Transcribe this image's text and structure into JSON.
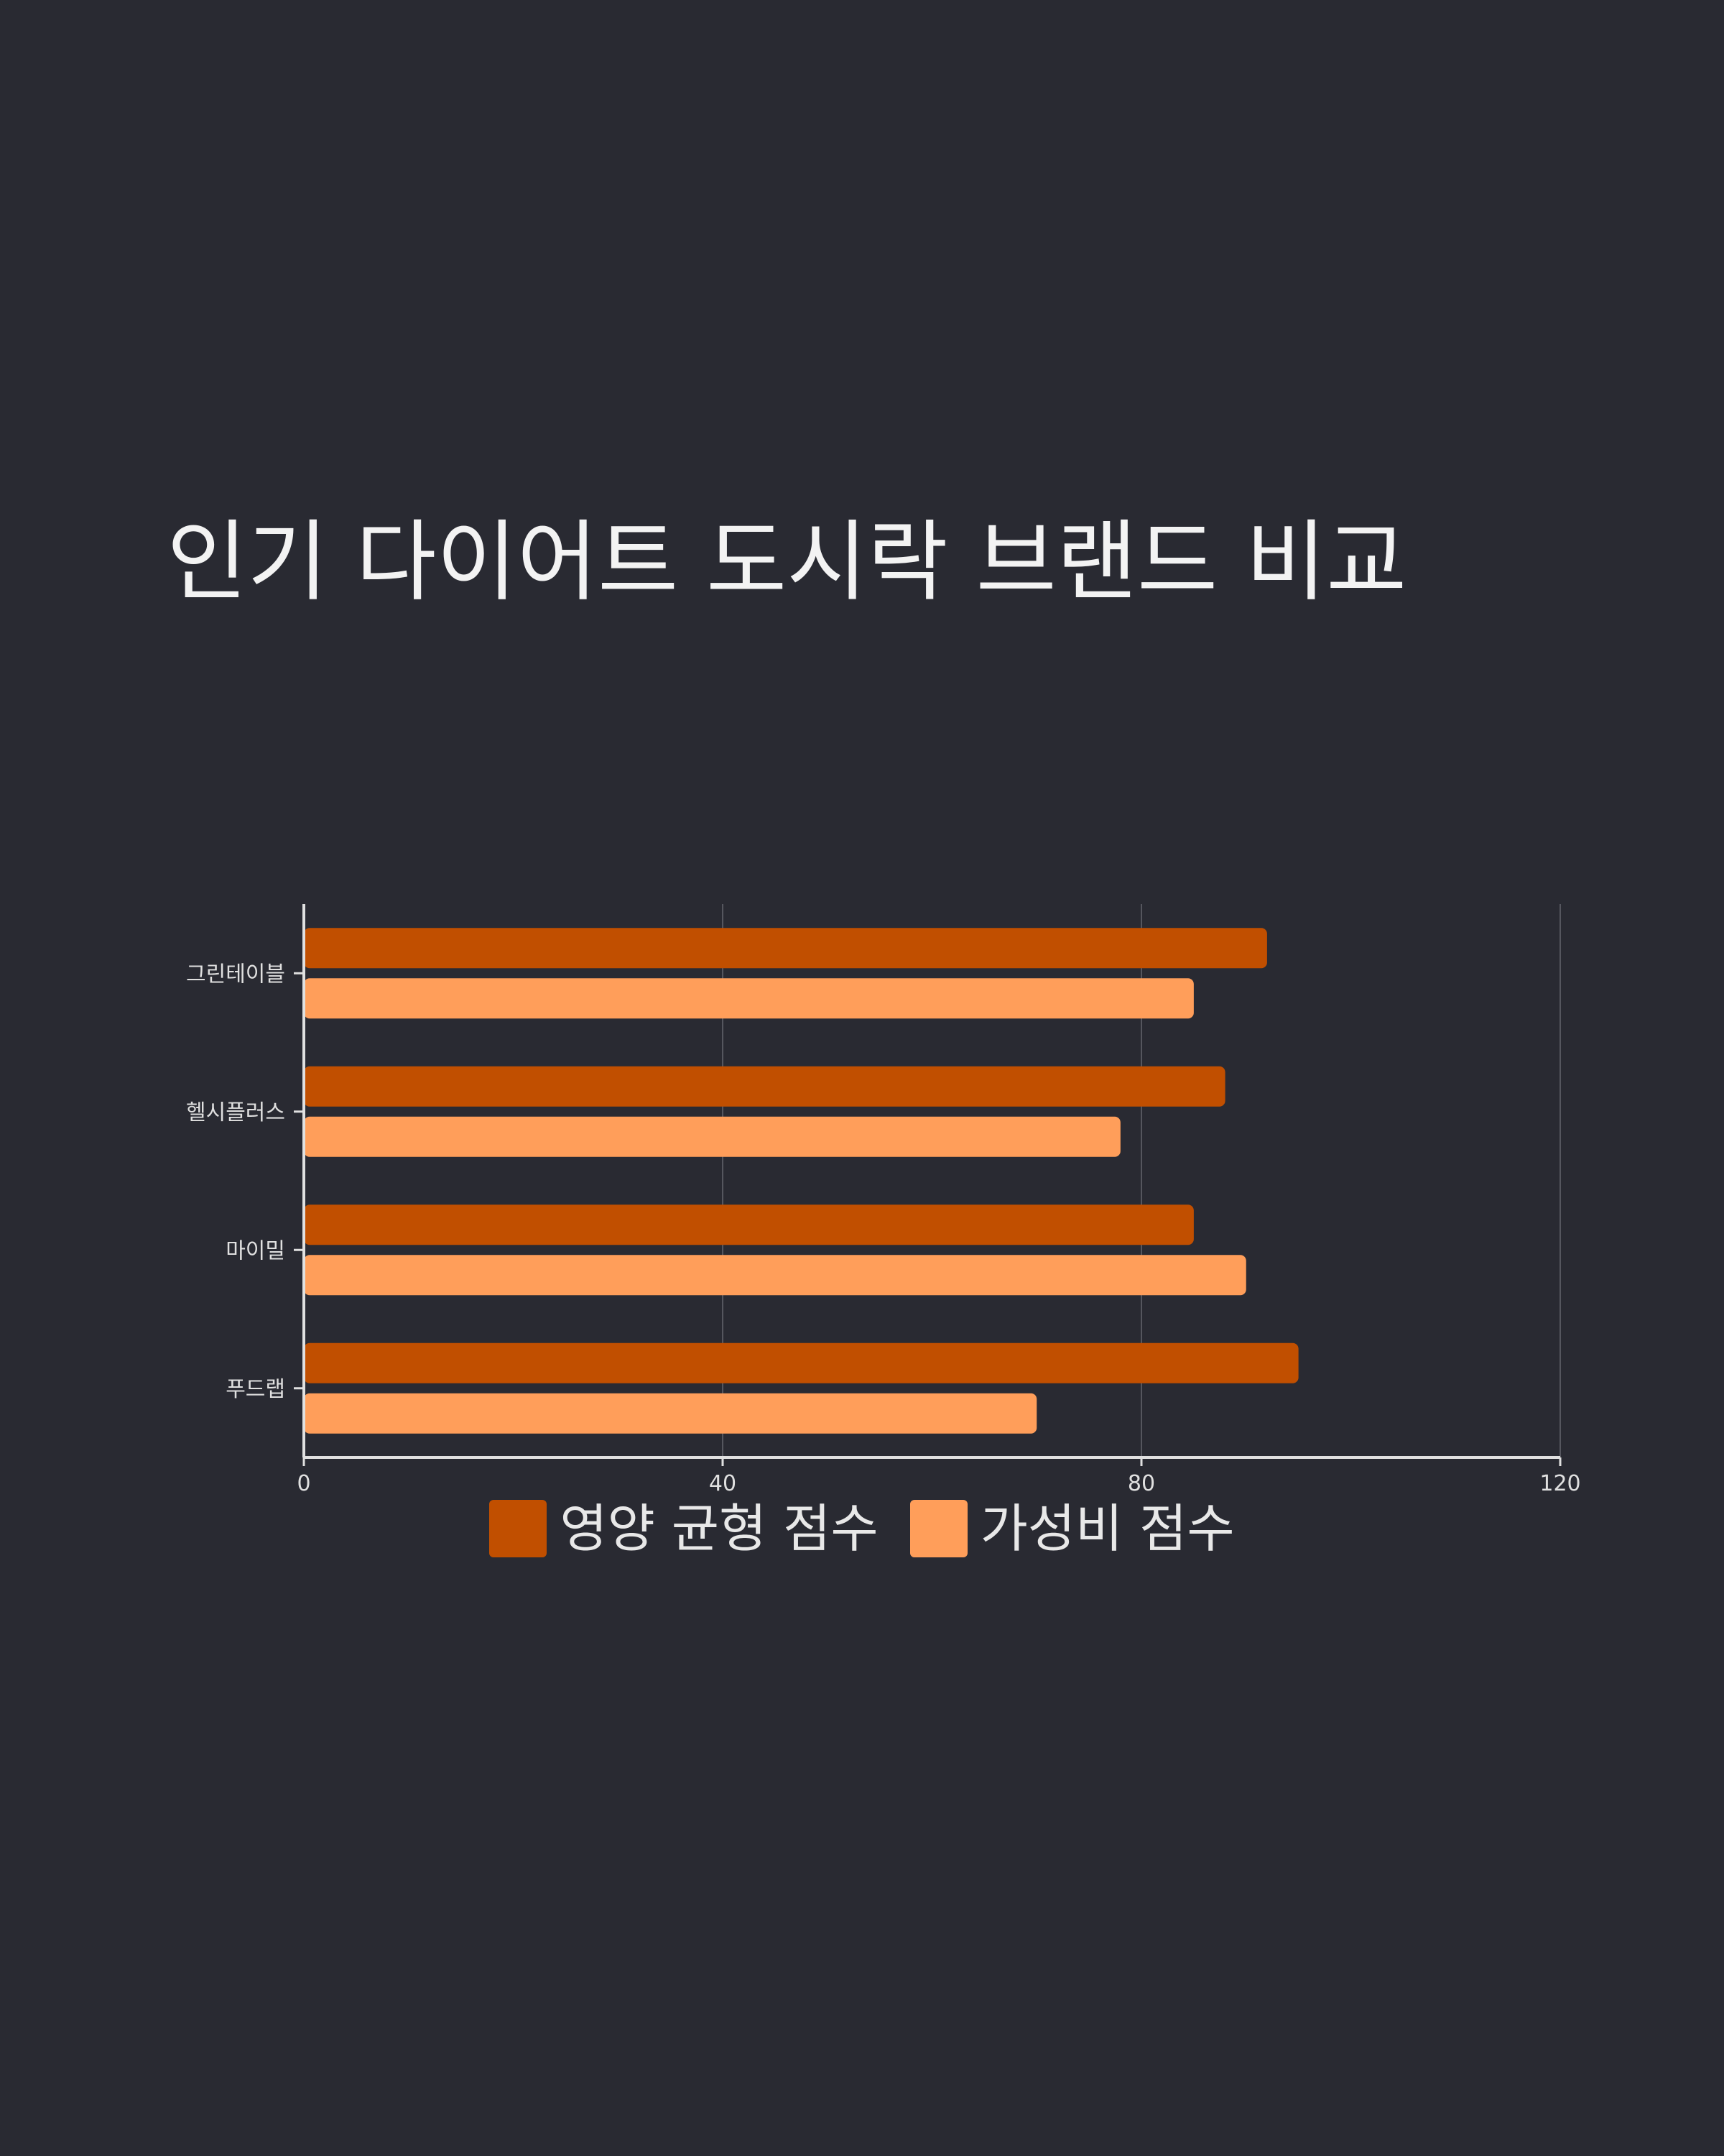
{
  "colors": {
    "background": "#292a32",
    "text": "#f3f3f3",
    "axis": "#e0e0e0",
    "grid": "#55565e",
    "series_1": "#c14f00",
    "series_2": "#ff9e5a"
  },
  "chart_data": {
    "type": "bar",
    "orientation": "horizontal",
    "title": "인기 다이어트 도시락 브랜드 비교",
    "xlabel": "",
    "ylabel": "",
    "categories": [
      "그린테이블",
      "헬시플러스",
      "마이밀",
      "푸드랩"
    ],
    "series": [
      {
        "name": "영양 균형 점수",
        "color": "#c14f00",
        "values": [
          92,
          88,
          85,
          95
        ]
      },
      {
        "name": "가성비 점수",
        "color": "#ff9e5a",
        "values": [
          85,
          78,
          90,
          70
        ]
      }
    ],
    "xlim": [
      0,
      120
    ],
    "xticks": [
      "0",
      "40",
      "80",
      "120"
    ],
    "grid": true,
    "legend_position": "bottom"
  }
}
